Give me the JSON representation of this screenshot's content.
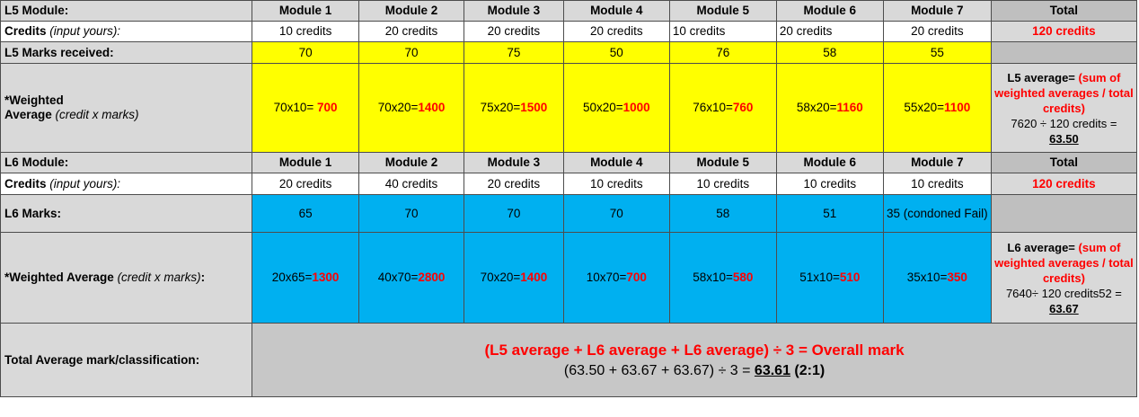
{
  "l5": {
    "header_label": "L5 Module:",
    "modules": [
      "Module 1",
      "Module 2",
      "Module 3",
      "Module 4",
      "Module 5",
      "Module 6",
      "Module 7"
    ],
    "total_label": "Total",
    "credits_label_bold": "Credits",
    "credits_label_italic": "(input yours):",
    "credits": [
      "10 credits",
      "20 credits",
      "20 credits",
      "20 credits",
      "10 credits",
      "20 credits",
      "20 credits"
    ],
    "credits_total": "120 credits",
    "marks_label": "L5 Marks received:",
    "marks": [
      "70",
      "70",
      "75",
      "50",
      "76",
      "58",
      "55"
    ],
    "weighted_label_line1": "*Weighted",
    "weighted_label_line2_bold": "Average",
    "weighted_label_line2_italic": "(credit x marks)",
    "weighted": [
      {
        "calc": "70x10= ",
        "result": "700"
      },
      {
        "calc": "70x20=",
        "result": "1400"
      },
      {
        "calc": "75x20=",
        "result": "1500"
      },
      {
        "calc": "50x20=",
        "result": "1000"
      },
      {
        "calc": "76x10=",
        "result": "760"
      },
      {
        "calc": "58x20=",
        "result": "1160"
      },
      {
        "calc": "55x20=",
        "result": "1100"
      }
    ],
    "avg_prefix": "L5 average= ",
    "avg_formula": "(sum of weighted averages / total credits)",
    "avg_calc": "7620 ÷ 120 credits =",
    "avg_value": "63.50"
  },
  "l6": {
    "header_label": "L6 Module:",
    "modules": [
      "Module 1",
      "Module 2",
      "Module 3",
      "Module 4",
      "Module 5",
      "Module 6",
      "Module 7"
    ],
    "total_label": "Total",
    "credits_label_bold": "Credits",
    "credits_label_italic": "(input yours):",
    "credits": [
      "20 credits",
      "40 credits",
      "20 credits",
      "10 credits",
      "10 credits",
      "10 credits",
      "10 credits"
    ],
    "credits_total": "120 credits",
    "marks_label": "L6 Marks:",
    "marks": [
      "65",
      "70",
      "70",
      "70",
      "58",
      "51",
      "35 (condoned Fail)"
    ],
    "weighted_label_bold": "*Weighted Average",
    "weighted_label_italic": "(credit x marks)",
    "weighted_label_colon": ":",
    "weighted": [
      {
        "calc": "20x65=",
        "result": "1300"
      },
      {
        "calc": "40x70=",
        "result": "2800"
      },
      {
        "calc": "70x20=",
        "result": "1400"
      },
      {
        "calc": "10x70=",
        "result": "700"
      },
      {
        "calc": "58x10=",
        "result": "580"
      },
      {
        "calc": "51x10=",
        "result": "510"
      },
      {
        "calc": "35x10=",
        "result": "350"
      }
    ],
    "avg_prefix": "L6 average= ",
    "avg_formula": "(sum of weighted averages / total credits)",
    "avg_calc": "7640÷ 120 credits52 =",
    "avg_value": "63.67"
  },
  "total": {
    "label": "Total Average mark/classification:",
    "formula": "(L5 average + L6 average + L6 average) ÷ 3 = Overall mark",
    "calc_prefix": "(63.50 + 63.67 + 63.67) ÷ 3 = ",
    "value": "63.61",
    "classification": " (2:1)"
  },
  "colors": {
    "header_gray": "#d9d9d9",
    "total_gray": "#bfbfbf",
    "l5_marks": "#ffff00",
    "l6_marks": "#00b0f0",
    "accent_red": "#ff0000"
  }
}
